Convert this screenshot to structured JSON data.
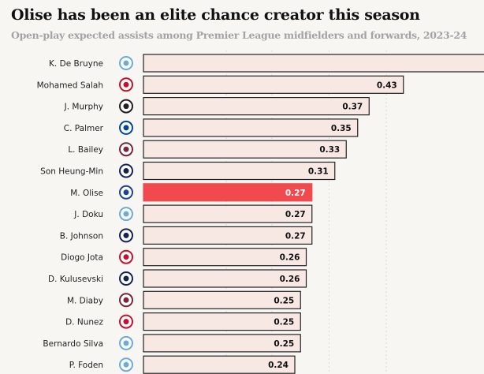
{
  "chart_data": {
    "type": "bar",
    "title": "Olise has been an elite chance creator this season",
    "subtitle": "Open-play expected assists among Premier League midfielders and forwards, 2023-24",
    "highlight_color": "#f04a4e",
    "bar_color": "#f8e8e4",
    "bars": [
      {
        "name": "K. De Bruyne",
        "club": "man-city",
        "value": 0.6,
        "label": ""
      },
      {
        "name": "Mohamed Salah",
        "club": "liverpool",
        "value": 0.43,
        "label": "0.43"
      },
      {
        "name": "J. Murphy",
        "club": "newcastle",
        "value": 0.37,
        "label": "0.37"
      },
      {
        "name": "C. Palmer",
        "club": "chelsea",
        "value": 0.35,
        "label": "0.35"
      },
      {
        "name": "L. Bailey",
        "club": "aston-villa",
        "value": 0.33,
        "label": "0.33"
      },
      {
        "name": "Son Heung-Min",
        "club": "tottenham",
        "value": 0.31,
        "label": "0.31"
      },
      {
        "name": "M. Olise",
        "club": "crystal-palace",
        "value": 0.27,
        "label": "0.27",
        "highlight": true
      },
      {
        "name": "J. Doku",
        "club": "man-city",
        "value": 0.27,
        "label": "0.27"
      },
      {
        "name": "B. Johnson",
        "club": "tottenham",
        "value": 0.27,
        "label": "0.27"
      },
      {
        "name": "Diogo Jota",
        "club": "liverpool",
        "value": 0.26,
        "label": "0.26"
      },
      {
        "name": "D. Kulusevski",
        "club": "tottenham",
        "value": 0.26,
        "label": "0.26"
      },
      {
        "name": "M. Diaby",
        "club": "aston-villa",
        "value": 0.25,
        "label": "0.25"
      },
      {
        "name": "D. Nunez",
        "club": "liverpool",
        "value": 0.25,
        "label": "0.25"
      },
      {
        "name": "Bernardo Silva",
        "club": "man-city",
        "value": 0.25,
        "label": "0.25"
      },
      {
        "name": "P. Foden",
        "club": "man-city",
        "value": 0.24,
        "label": "0.24"
      }
    ],
    "club_colors": {
      "man-city": "#6cabdd",
      "liverpool": "#c8102e",
      "newcastle": "#241f20",
      "chelsea": "#034694",
      "aston-villa": "#7a263a",
      "tottenham": "#132257",
      "crystal-palace": "#1b458f"
    }
  }
}
